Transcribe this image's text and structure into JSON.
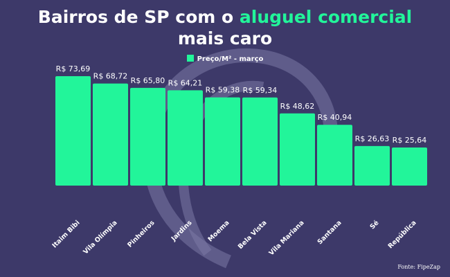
{
  "title": {
    "part1": "Bairros de SP com o ",
    "highlight": "aluguel comercial",
    "line2": "mais caro"
  },
  "legend_label": "Preço/M² - março",
  "source": "Fonte: FipeZap",
  "colors": {
    "background": "#3d3969",
    "bar": "#22f59a",
    "text": "#ffffff",
    "watermark": "#7c7aa5"
  },
  "chart_data": {
    "type": "bar",
    "categories": [
      "Itaim Bibi",
      "Vila Olímpia",
      "Pinheiros",
      "Jardins",
      "Moema",
      "Bela Vista",
      "Vila Mariana",
      "Santana",
      "Sé",
      "República"
    ],
    "values": [
      73.69,
      68.72,
      65.8,
      64.21,
      59.38,
      59.34,
      48.62,
      40.94,
      26.63,
      25.64
    ],
    "value_labels": [
      "R$ 73,69",
      "R$ 68,72",
      "R$ 65,80",
      "R$ 64,21",
      "R$ 59,38",
      "R$ 59,34",
      "R$ 48,62",
      "R$ 40,94",
      "R$ 26,63",
      "R$ 25,64"
    ],
    "series": [
      {
        "name": "Preço/M² - março",
        "values": [
          73.69,
          68.72,
          65.8,
          64.21,
          59.38,
          59.34,
          48.62,
          40.94,
          26.63,
          25.64
        ]
      }
    ],
    "title": "Bairros de SP com o aluguel comercial mais caro",
    "xlabel": "",
    "ylabel": "",
    "ylim": [
      0,
      73.69
    ],
    "grid": false,
    "legend_position": "top-center"
  }
}
